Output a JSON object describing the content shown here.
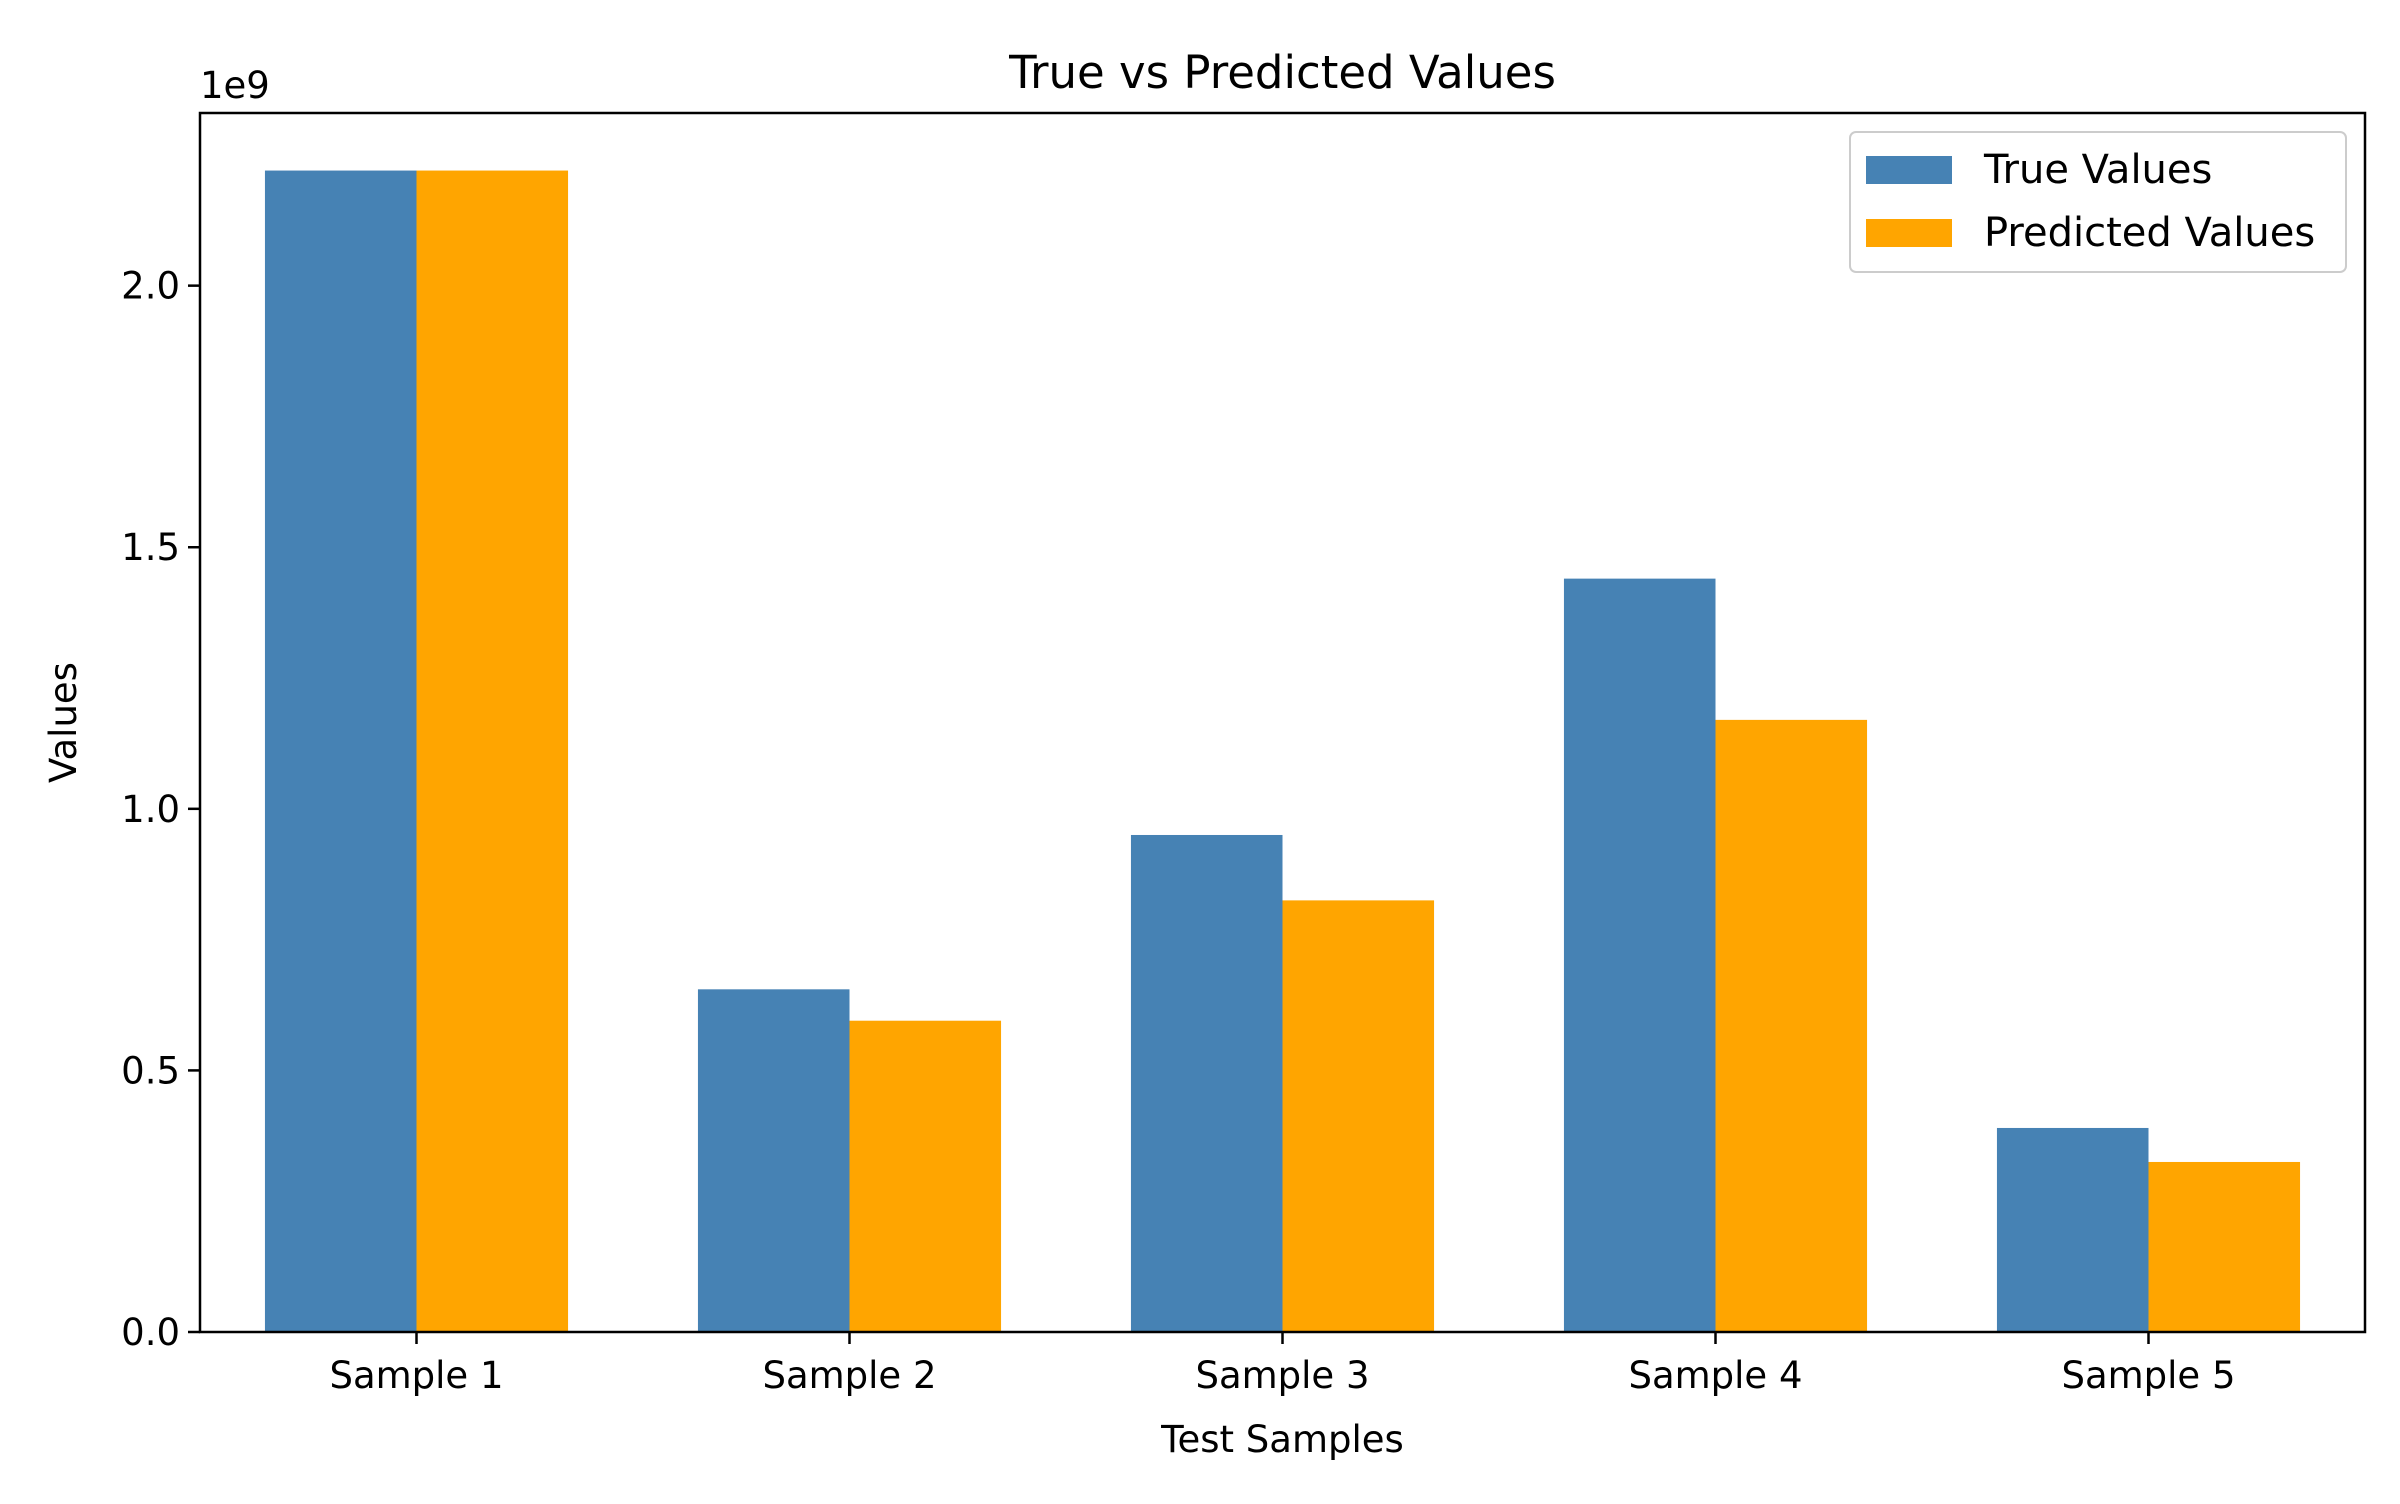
{
  "chart_data": {
    "type": "bar",
    "title": "True vs Predicted Values",
    "xlabel": "Test Samples",
    "ylabel": "Values",
    "y_offset_label": "1e9",
    "categories": [
      "Sample 1",
      "Sample 2",
      "Sample 3",
      "Sample 4",
      "Sample 5"
    ],
    "series": [
      {
        "name": "True Values",
        "color": "#4682B4",
        "values": [
          2220000000,
          655000000,
          950000000,
          1440000000,
          390000000
        ]
      },
      {
        "name": "Predicted Values",
        "color": "#FFA500",
        "values": [
          2220000000,
          595000000,
          825000000,
          1170000000,
          325000000
        ]
      }
    ],
    "ylim": [
      0,
      2330000000
    ],
    "yticks": [
      0,
      500000000,
      1000000000,
      1500000000,
      2000000000
    ],
    "ytick_labels": [
      "0.0",
      "0.5",
      "1.0",
      "1.5",
      "2.0"
    ],
    "grid": false,
    "legend_position": "top-right"
  }
}
